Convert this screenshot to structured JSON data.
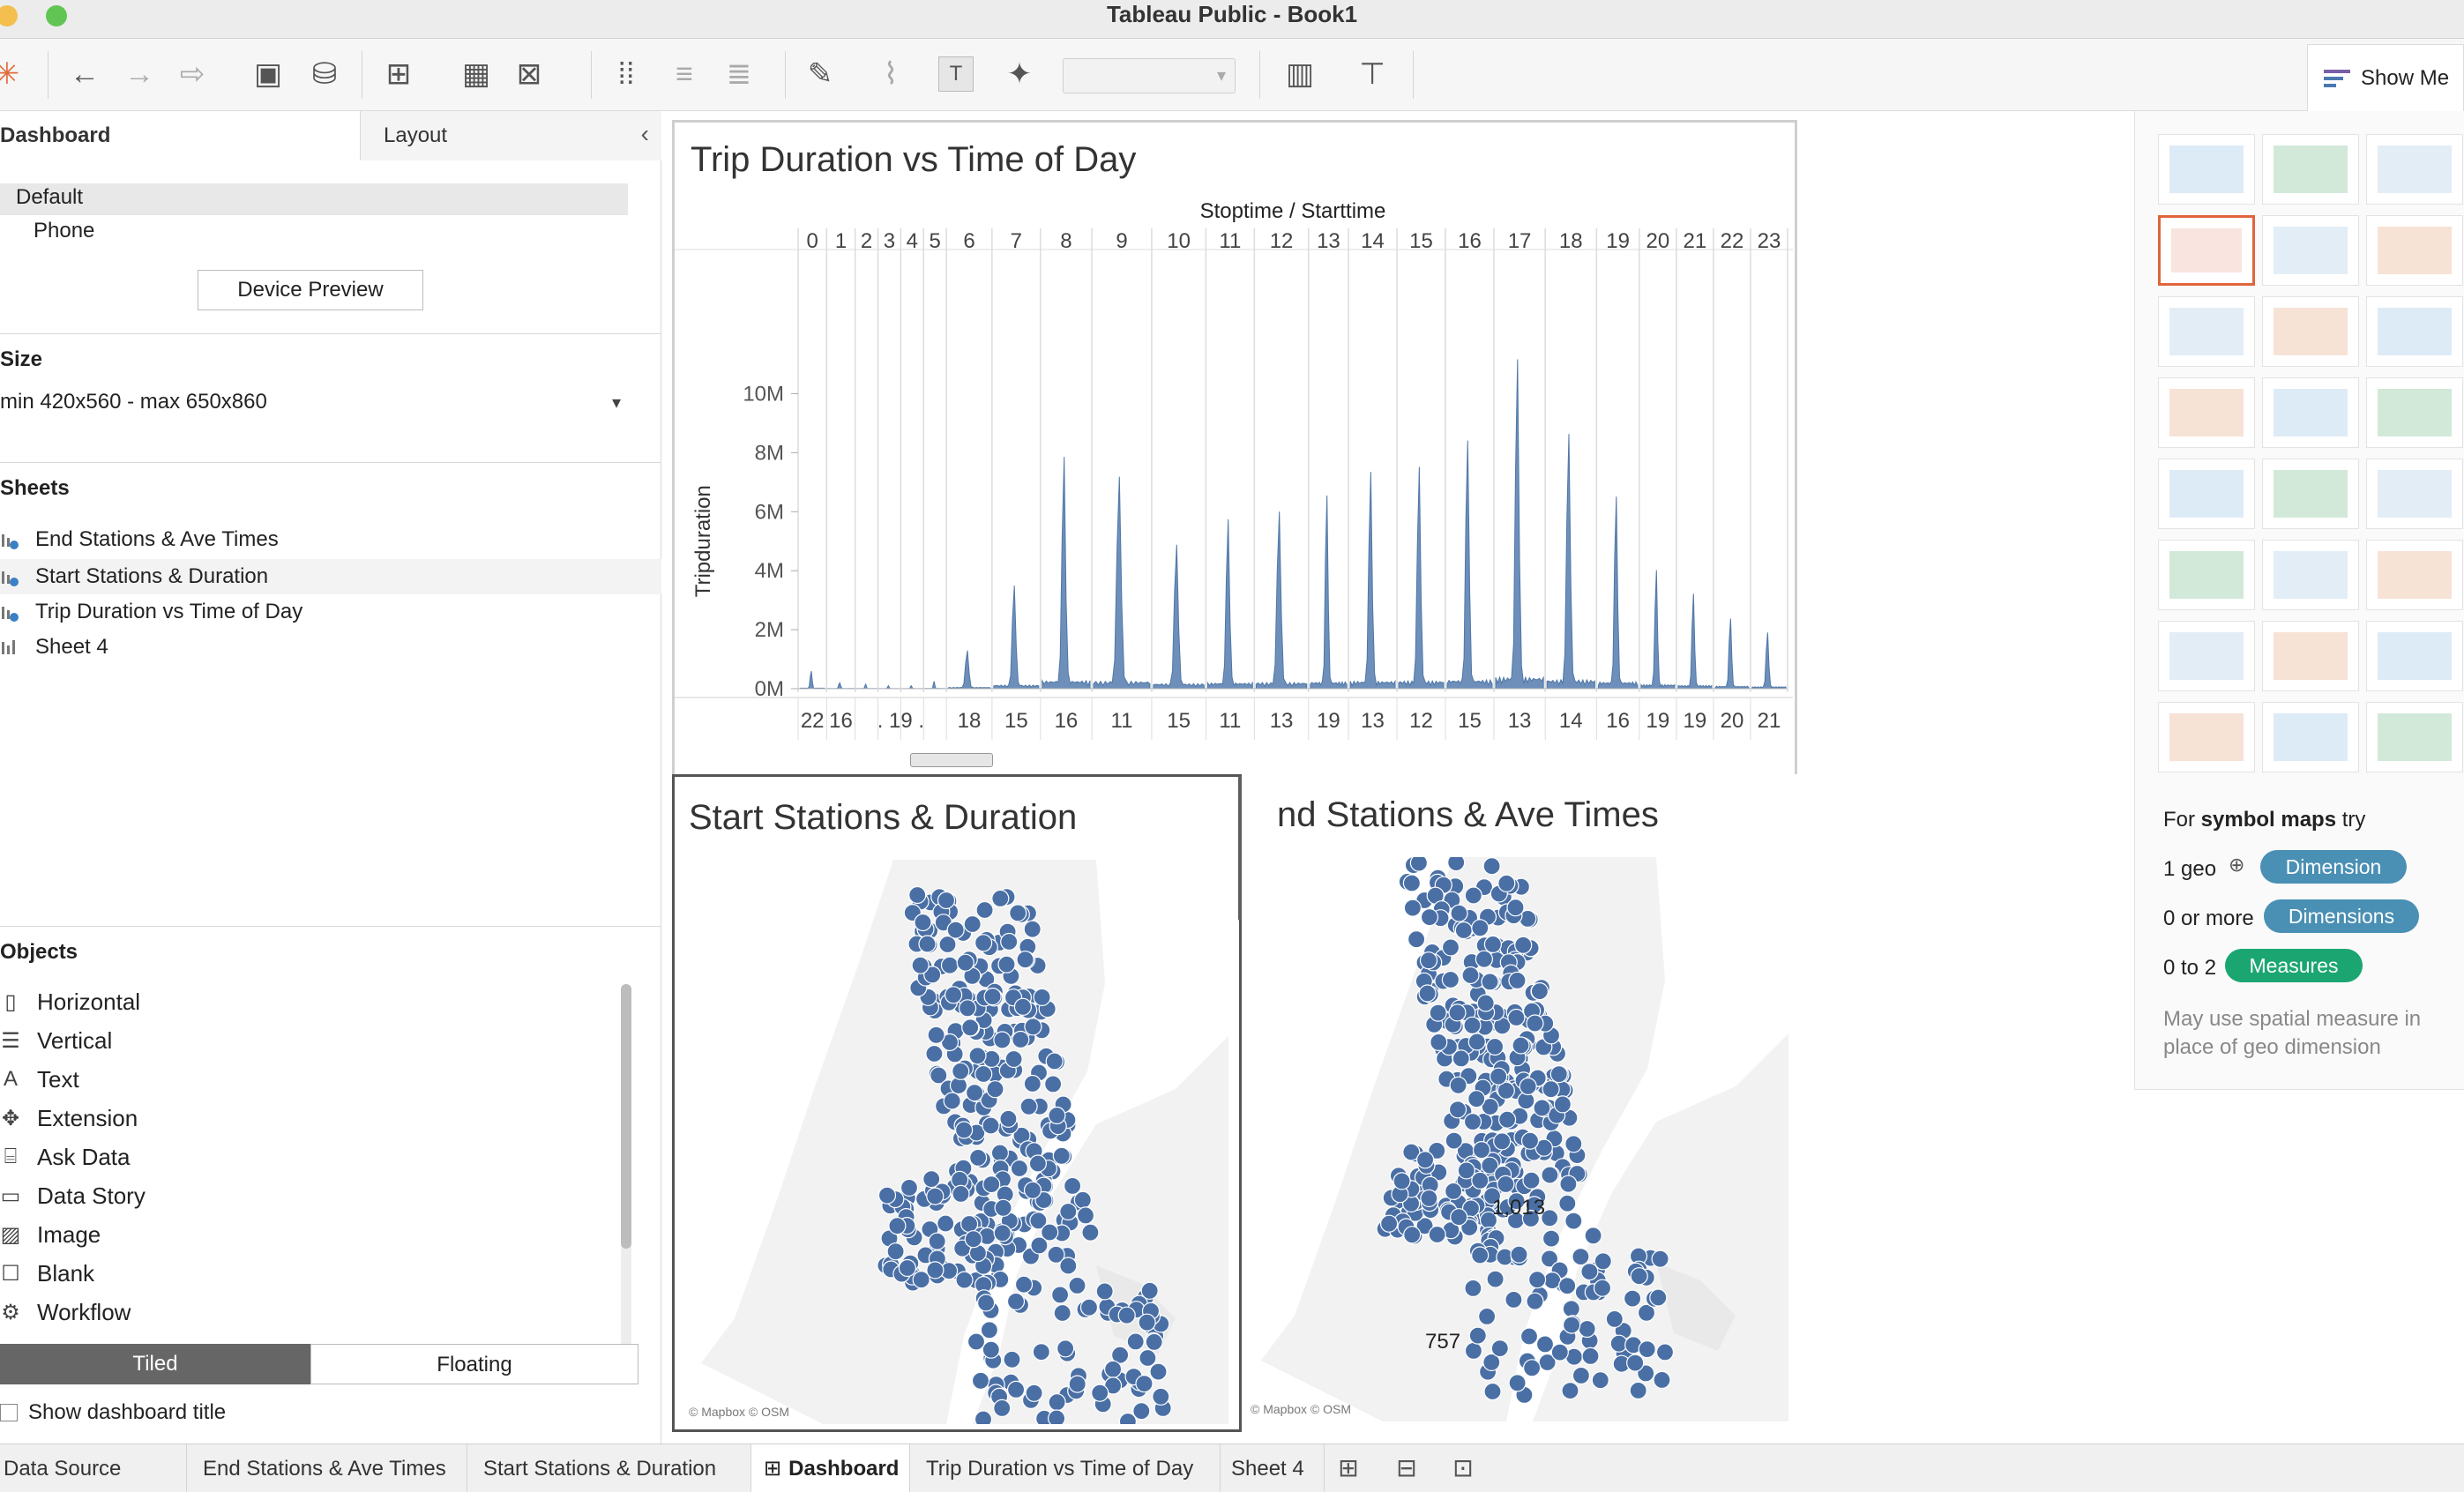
{
  "window": {
    "title": "Tableau Public - Book1"
  },
  "toolbar": {
    "show_me_label": "Show Me"
  },
  "left_panel": {
    "tabs": [
      "Dashboard",
      "Layout"
    ],
    "device": {
      "default": "Default",
      "phone": "Phone",
      "preview_button": "Device Preview"
    },
    "size": {
      "heading": "Size",
      "value": "min 420x560 - max 650x860"
    },
    "sheets": {
      "heading": "Sheets",
      "items": [
        "End Stations & Ave Times",
        "Start Stations & Duration",
        "Trip Duration vs Time of Day",
        "Sheet 4"
      ]
    },
    "objects": {
      "heading": "Objects",
      "items": [
        "Horizontal",
        "Vertical",
        "Text",
        "Extension",
        "Ask Data",
        "Data Story",
        "Image",
        "Blank",
        "Workflow"
      ]
    },
    "layout_mode": {
      "tiled": "Tiled",
      "floating": "Floating"
    },
    "show_title": "Show dashboard title"
  },
  "dashboard": {
    "trip_chart": {
      "title": "Trip Duration vs Time of Day",
      "header": "Stoptime / Starttime"
    },
    "start_map": {
      "title": "Start Stations & Duration",
      "credit": "© Mapbox © OSM"
    },
    "end_map": {
      "title": "nd Stations & Ave Times",
      "credit": "© Mapbox © OSM",
      "label_a": "1,013",
      "label_b": "757"
    }
  },
  "chart_data": {
    "type": "area",
    "title": "Trip Duration vs Time of Day",
    "xlabel": "Stoptime / Starttime",
    "ylabel": "Tripduration",
    "ylim": [
      0,
      11000000
    ],
    "yticks": [
      "0M",
      "2M",
      "4M",
      "6M",
      "8M",
      "10M"
    ],
    "yticks_values": [
      0,
      2000000,
      4000000,
      6000000,
      8000000,
      10000000
    ],
    "top_hours": [
      "0",
      "1",
      "2",
      "3",
      "4",
      "5",
      "6",
      "7",
      "8",
      "9",
      "10",
      "11",
      "12",
      "13",
      "14",
      "15",
      "16",
      "17",
      "18",
      "19",
      "20",
      "21",
      "22",
      "23"
    ],
    "bottom_labels": [
      "22",
      "16",
      ". 19 .",
      "18",
      "15",
      "16",
      "11",
      "15",
      "11",
      "13",
      "19",
      "13",
      "12",
      "15",
      "13",
      "14",
      "16",
      "19",
      "19",
      "20",
      "21"
    ],
    "peaks_by_hour": [
      600000,
      200000,
      150000,
      100000,
      100000,
      250000,
      1300000,
      3500000,
      7800000,
      7200000,
      4900000,
      5700000,
      6000000,
      6600000,
      7300000,
      7500000,
      8500000,
      11100000,
      8600000,
      6600000,
      4000000,
      3200000,
      2400000,
      1900000
    ]
  },
  "show_me": {
    "hint_prefix": "For ",
    "hint_bold": "symbol maps",
    "hint_suffix": " try",
    "rows": [
      {
        "count": "1 geo",
        "pill": "Dimension",
        "color": "#4a8fb4"
      },
      {
        "count": "0 or more",
        "pill": "Dimensions",
        "color": "#4a8fb4"
      },
      {
        "count": "0 to 2",
        "pill": "Measures",
        "color": "#1ba671"
      }
    ],
    "note": "May use spatial measure in place of geo dimension"
  },
  "bottom_tabs": [
    "Data Source",
    "End Stations & Ave Times",
    "Start Stations & Duration",
    "Dashboard",
    "Trip Duration vs Time of Day",
    "Sheet 4"
  ],
  "colors": {
    "mark": "#4a6fa5",
    "area": "#6d8fba",
    "accent_sel": "#e0643c"
  }
}
